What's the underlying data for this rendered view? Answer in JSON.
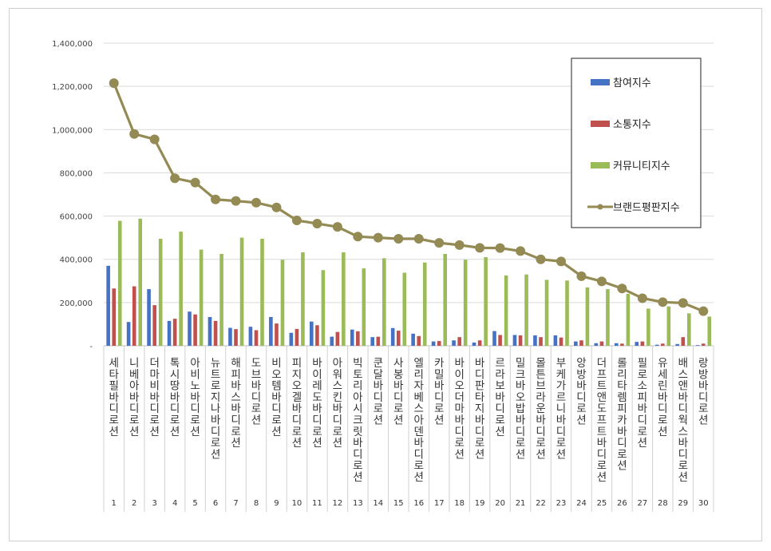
{
  "chart_data": {
    "type": "bar",
    "title": "",
    "xlabel": "",
    "ylabel": "",
    "ylim": [
      0,
      1400000
    ],
    "yticks": [
      "-",
      "200,000",
      "400,000",
      "600,000",
      "800,000",
      "1,000,000",
      "1,200,000",
      "1,400,000"
    ],
    "ranks": [
      "1",
      "2",
      "3",
      "4",
      "5",
      "6",
      "7",
      "8",
      "9",
      "10",
      "11",
      "12",
      "13",
      "14",
      "15",
      "16",
      "17",
      "18",
      "19",
      "20",
      "21",
      "22",
      "23",
      "24",
      "25",
      "26",
      "27",
      "28",
      "29",
      "30"
    ],
    "categories": [
      "세타필바디로션",
      "니베아바디로션",
      "더마비바디로션",
      "톡시땅바디로션",
      "아비노바디로션",
      "뉴트로지나바디로션",
      "해피바스바디로션",
      "도브바디로션",
      "비오템바디로션",
      "피지오겔바디로션",
      "바이레도바디로션",
      "아워스킨바디로션",
      "빅토리아시크릿바디로션",
      "쿤달바디로션",
      "사봉바디로션",
      "엘리자베스아덴바디로션",
      "카밀바디로션",
      "바이오더마바디로션",
      "바디판타지바디로션",
      "르라보바디로션",
      "밀크바오밥바디로션",
      "몰튼브라운바디로션",
      "부케가르니바디로션",
      "앙방바디로션",
      "더프트앤도프트바디로션",
      "롤리타렘피카바디로션",
      "필로소피바디로션",
      "유세린바디로션",
      "배스앤바디웍스바디로션",
      "랑방바디로션"
    ],
    "legend_position": "right",
    "series": [
      {
        "name": "참여지수",
        "color": "#4472C4",
        "type": "bar",
        "values": [
          370000,
          110000,
          262000,
          115000,
          158000,
          133000,
          83000,
          88000,
          133000,
          60000,
          112000,
          42000,
          75000,
          40000,
          82000,
          56000,
          20000,
          25000,
          15000,
          68000,
          50000,
          48000,
          48000,
          20000,
          12000,
          12000,
          18000,
          5000,
          8000,
          3000
        ]
      },
      {
        "name": "소통지수",
        "color": "#C0504D",
        "type": "bar",
        "values": [
          265000,
          275000,
          188000,
          125000,
          145000,
          115000,
          77000,
          72000,
          103000,
          78000,
          95000,
          64000,
          67000,
          42000,
          70000,
          45000,
          22000,
          40000,
          25000,
          50000,
          48000,
          40000,
          38000,
          25000,
          20000,
          10000,
          20000,
          10000,
          40000,
          10000
        ]
      },
      {
        "name": "커뮤니티지수",
        "color": "#9BBB59",
        "type": "bar",
        "values": [
          578000,
          588000,
          495000,
          528000,
          445000,
          425000,
          500000,
          495000,
          398000,
          432000,
          350000,
          432000,
          358000,
          405000,
          338000,
          385000,
          425000,
          398000,
          410000,
          325000,
          330000,
          305000,
          302000,
          270000,
          262000,
          240000,
          172000,
          182000,
          150000,
          135000
        ]
      },
      {
        "name": "브랜드평판지수",
        "color": "#948A54",
        "type": "line",
        "values": [
          1215000,
          980000,
          955000,
          775000,
          755000,
          677000,
          670000,
          662000,
          640000,
          580000,
          565000,
          550000,
          505000,
          500000,
          495000,
          495000,
          476000,
          466000,
          453000,
          452000,
          438000,
          400000,
          390000,
          322000,
          298000,
          265000,
          220000,
          202000,
          198000,
          160000
        ]
      }
    ]
  }
}
